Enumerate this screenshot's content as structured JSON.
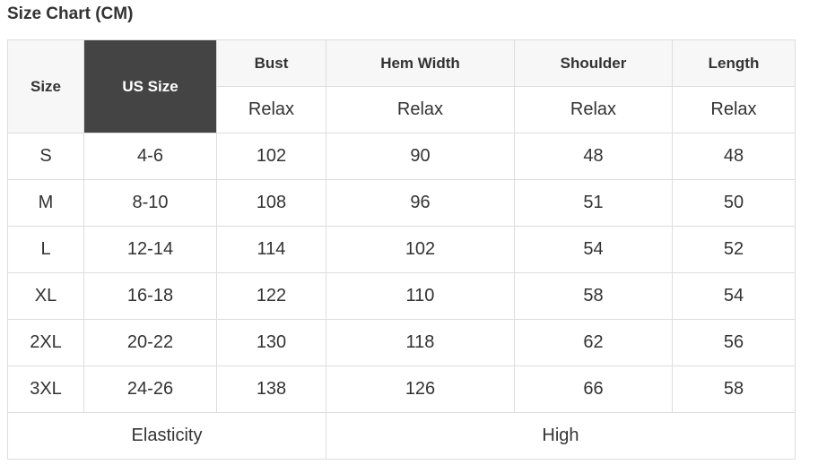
{
  "title": "Size Chart (CM)",
  "colors": {
    "header_bg": "#f7f7f7",
    "highlight_bg": "#444444",
    "border": "#dddddd"
  },
  "headers": [
    "Size",
    "US Size",
    "Bust",
    "Hem Width",
    "Shoulder",
    "Length"
  ],
  "subheaders": [
    "Relax",
    "Relax",
    "Relax",
    "Relax"
  ],
  "rows": [
    [
      "S",
      "4-6",
      "102",
      "90",
      "48",
      "48"
    ],
    [
      "M",
      "8-10",
      "108",
      "96",
      "51",
      "50"
    ],
    [
      "L",
      "12-14",
      "114",
      "102",
      "54",
      "52"
    ],
    [
      "XL",
      "16-18",
      "122",
      "110",
      "58",
      "54"
    ],
    [
      "2XL",
      "20-22",
      "130",
      "118",
      "62",
      "56"
    ],
    [
      "3XL",
      "24-26",
      "138",
      "126",
      "66",
      "58"
    ]
  ],
  "footer": {
    "label": "Elasticity",
    "value": "High"
  }
}
